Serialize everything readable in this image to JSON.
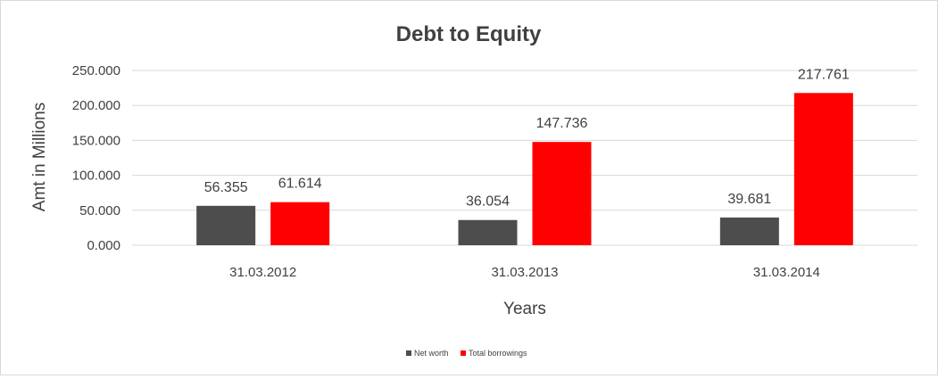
{
  "chart_data": {
    "type": "bar",
    "title": "Debt to Equity",
    "xlabel": "Years",
    "ylabel": "Amt in Millions",
    "categories": [
      "31.03.2012",
      "31.03.2013",
      "31.03.2014"
    ],
    "series": [
      {
        "name": "Net worth",
        "color": "#4d4d4d",
        "values": [
          56.355,
          36.054,
          39.681
        ],
        "labels": [
          "56.355",
          "36.054",
          "39.681"
        ]
      },
      {
        "name": "Total borrowings",
        "color": "#ff0000",
        "values": [
          61.614,
          147.736,
          217.761
        ],
        "labels": [
          "61.614",
          "147.736",
          "217.761"
        ]
      }
    ],
    "ylim": [
      0,
      250
    ],
    "yticks": [
      0,
      50,
      100,
      150,
      200,
      250
    ],
    "ytick_labels": [
      "0.000",
      "50.000",
      "100.000",
      "150.000",
      "200.000",
      "250.000"
    ],
    "grid": true,
    "legend_position": "bottom",
    "grid_color": "#d9d9d9"
  }
}
